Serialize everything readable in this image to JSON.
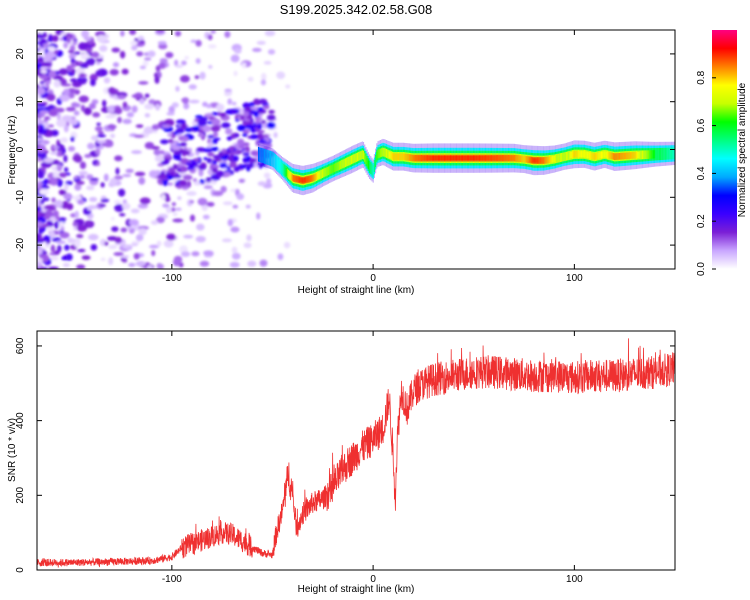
{
  "title": "S199.2025.342.02.58.G08",
  "chart_data": [
    {
      "type": "heatmap",
      "name": "spectrogram",
      "xlabel": "Height of straight line (km)",
      "ylabel": "Frequency (Hz)",
      "xlim": [
        -167,
        150
      ],
      "ylim": [
        -25,
        25
      ],
      "xticks": [
        -100,
        0,
        100
      ],
      "yticks": [
        20,
        10,
        0,
        -10,
        -20
      ],
      "colorbar": {
        "label": "Normalized spectral amplitude",
        "range": [
          0,
          1
        ],
        "ticks": [
          0.0,
          0.2,
          0.4,
          0.6,
          0.8
        ],
        "colors": [
          "#ffffff",
          "#c9a6ff",
          "#7b1fd6",
          "#3a00ff",
          "#0000ff",
          "#00aaff",
          "#00ffff",
          "#00ff80",
          "#00ff00",
          "#c8ff00",
          "#ffff00",
          "#ff8000",
          "#ff0000",
          "#ff0080"
        ]
      },
      "ridge": {
        "x": [
          -57,
          -50,
          -45,
          -40,
          -35,
          -30,
          -25,
          -20,
          -15,
          -10,
          -5,
          -2,
          0,
          2,
          5,
          10,
          15,
          20,
          30,
          40,
          50,
          60,
          70,
          75,
          80,
          85,
          90,
          95,
          100,
          105,
          110,
          115,
          120,
          130,
          140,
          150
        ],
        "freq": [
          -1,
          -2,
          -4,
          -6,
          -6.5,
          -6,
          -5,
          -4,
          -3,
          -2,
          -1,
          -3.5,
          -4.5,
          -1,
          -0.5,
          -1.5,
          -1.5,
          -1.8,
          -1.8,
          -1.8,
          -1.8,
          -1.8,
          -1.8,
          -2,
          -2.3,
          -2.3,
          -2,
          -1.5,
          -1,
          -1,
          -1.5,
          -1,
          -1.5,
          -1.2,
          -1,
          -0.8
        ],
        "amp": [
          0.35,
          0.4,
          0.5,
          0.85,
          0.9,
          0.85,
          0.7,
          0.65,
          0.7,
          0.75,
          0.7,
          0.6,
          0.5,
          0.65,
          0.7,
          0.8,
          0.8,
          0.85,
          0.9,
          0.9,
          0.9,
          0.88,
          0.85,
          0.8,
          0.9,
          0.85,
          0.75,
          0.7,
          0.8,
          0.75,
          0.8,
          0.75,
          0.85,
          0.8,
          0.6,
          0.5
        ]
      }
    },
    {
      "type": "line",
      "name": "snr",
      "xlabel": "Height of straight line (km)",
      "ylabel": "SNR (10 * v/v)",
      "xlim": [
        -167,
        150
      ],
      "ylim": [
        0,
        640
      ],
      "xticks": [
        -100,
        0,
        100
      ],
      "yticks": [
        0,
        200,
        400,
        600
      ],
      "color": "#ef3030",
      "x": [
        -167,
        -150,
        -130,
        -110,
        -100,
        -95,
        -90,
        -80,
        -75,
        -70,
        -60,
        -55,
        -50,
        -48,
        -45,
        -42,
        -40,
        -38,
        -35,
        -30,
        -25,
        -20,
        -15,
        -10,
        -5,
        0,
        5,
        8,
        10,
        11,
        12,
        14,
        17,
        20,
        25,
        30,
        40,
        50,
        60,
        70,
        80,
        90,
        100,
        110,
        120,
        130,
        140,
        150
      ],
      "values": [
        20,
        20,
        22,
        25,
        35,
        60,
        70,
        90,
        100,
        95,
        60,
        45,
        40,
        100,
        160,
        260,
        200,
        110,
        150,
        180,
        190,
        220,
        270,
        300,
        330,
        350,
        380,
        460,
        300,
        190,
        350,
        480,
        430,
        480,
        500,
        510,
        520,
        530,
        530,
        525,
        520,
        520,
        515,
        520,
        520,
        525,
        530,
        540
      ]
    }
  ]
}
